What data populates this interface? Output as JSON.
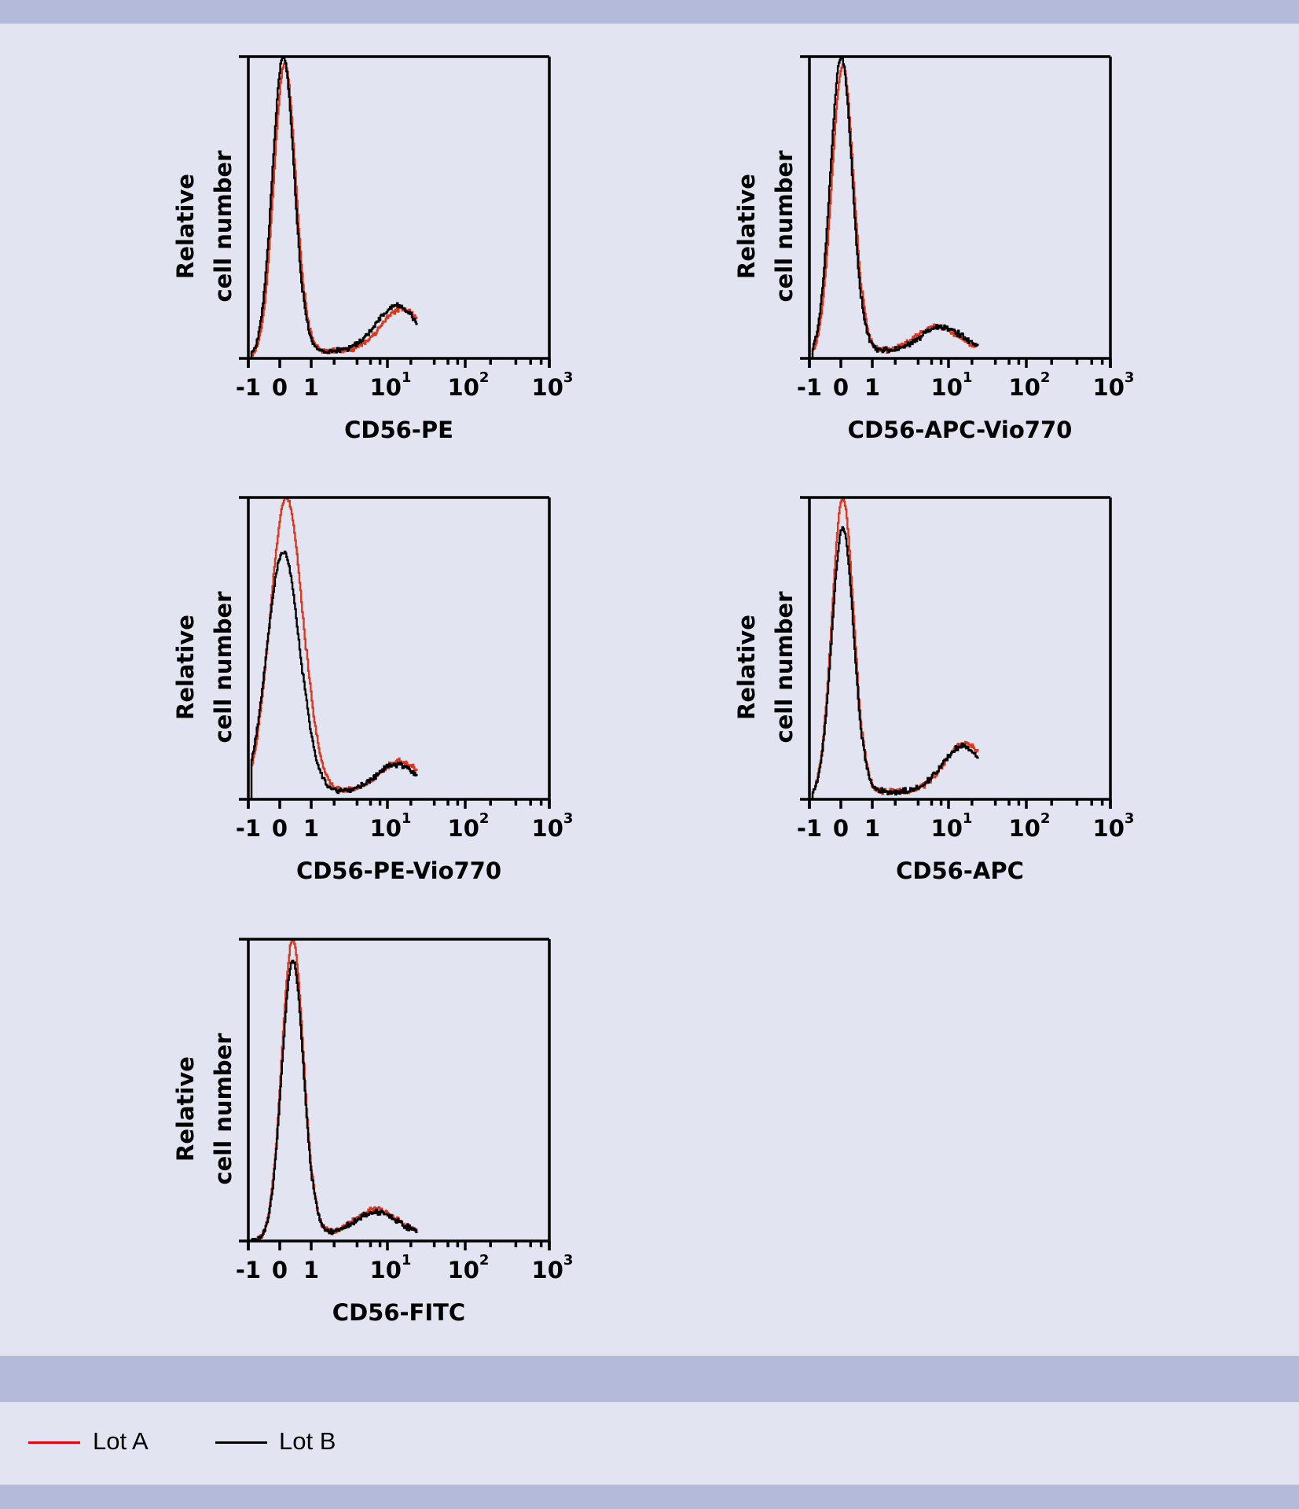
{
  "legend": {
    "items": [
      {
        "label": "Lot A",
        "color": "#e30613"
      },
      {
        "label": "Lot B",
        "color": "#000000"
      }
    ]
  },
  "colors": {
    "background": "#e2e5f1",
    "band": "#b3bada",
    "lot_a_line": "#d9381e",
    "lot_b_line": "#000000"
  },
  "chart_data": [
    {
      "type": "line",
      "subtype": "histogram",
      "title": "",
      "xlabel": "CD56-PE",
      "ylabel": "Relative cell number",
      "x_ticks": [
        "-1",
        "0",
        "1",
        "10^1",
        "10^2",
        "10^3"
      ],
      "x_scale": "biexponential",
      "xlim": [
        -1,
        1000
      ],
      "series": [
        {
          "name": "Lot A",
          "peak1_x": 0.15,
          "peak1_y": 0.98,
          "peak2_x": 15,
          "peak2_y": 0.14
        },
        {
          "name": "Lot B",
          "peak1_x": 0.1,
          "peak1_y": 1.0,
          "peak2_x": 13,
          "peak2_y": 0.15
        }
      ]
    },
    {
      "type": "line",
      "subtype": "histogram",
      "title": "",
      "xlabel": "CD56-APC-Vio770",
      "ylabel": "Relative cell number",
      "x_ticks": [
        "-1",
        "0",
        "1",
        "10^1",
        "10^2",
        "10^3"
      ],
      "x_scale": "biexponential",
      "xlim": [
        -1,
        1000
      ],
      "series": [
        {
          "name": "Lot A",
          "peak1_x": 0.05,
          "peak1_y": 0.97,
          "peak2_x": 7,
          "peak2_y": 0.08
        },
        {
          "name": "Lot B",
          "peak1_x": 0.0,
          "peak1_y": 1.0,
          "peak2_x": 8,
          "peak2_y": 0.08
        }
      ]
    },
    {
      "type": "line",
      "subtype": "histogram",
      "title": "",
      "xlabel": "CD56-PE-Vio770",
      "ylabel": "Relative cell number",
      "x_ticks": [
        "-1",
        "0",
        "1",
        "10^1",
        "10^2",
        "10^3"
      ],
      "x_scale": "biexponential",
      "xlim": [
        -1,
        1000
      ],
      "series": [
        {
          "name": "Lot A",
          "peak1_x": 0.2,
          "peak1_y": 1.0,
          "peak2_x": 14,
          "peak2_y": 0.1
        },
        {
          "name": "Lot B",
          "peak1_x": 0.1,
          "peak1_y": 0.82,
          "peak2_x": 13,
          "peak2_y": 0.09
        }
      ]
    },
    {
      "type": "line",
      "subtype": "histogram",
      "title": "",
      "xlabel": "CD56-APC",
      "ylabel": "Relative cell number",
      "x_ticks": [
        "-1",
        "0",
        "1",
        "10^1",
        "10^2",
        "10^3"
      ],
      "x_scale": "biexponential",
      "xlim": [
        -1,
        1000
      ],
      "series": [
        {
          "name": "Lot A",
          "peak1_x": 0.05,
          "peak1_y": 1.0,
          "peak2_x": 16,
          "peak2_y": 0.16
        },
        {
          "name": "Lot B",
          "peak1_x": 0.05,
          "peak1_y": 0.9,
          "peak2_x": 15,
          "peak2_y": 0.15
        }
      ]
    },
    {
      "type": "line",
      "subtype": "histogram",
      "title": "",
      "xlabel": "CD56-FITC",
      "ylabel": "Relative cell number",
      "x_ticks": [
        "-1",
        "0",
        "1",
        "10^1",
        "10^2",
        "10^3"
      ],
      "x_scale": "biexponential",
      "xlim": [
        -1,
        1000
      ],
      "series": [
        {
          "name": "Lot A",
          "peak1_x": 0.4,
          "peak1_y": 1.0,
          "peak2_x": 7,
          "peak2_y": 0.08
        },
        {
          "name": "Lot B",
          "peak1_x": 0.4,
          "peak1_y": 0.93,
          "peak2_x": 7,
          "peak2_y": 0.07
        }
      ]
    }
  ],
  "plots": [
    {
      "xlabel": "CD56-PE",
      "ylabel_line1": "Relative",
      "ylabel_line2": "cell number"
    },
    {
      "xlabel": "CD56-APC-Vio770",
      "ylabel_line1": "Relative",
      "ylabel_line2": "cell number"
    },
    {
      "xlabel": "CD56-PE-Vio770",
      "ylabel_line1": "Relative",
      "ylabel_line2": "cell number"
    },
    {
      "xlabel": "CD56-APC",
      "ylabel_line1": "Relative",
      "ylabel_line2": "cell number"
    },
    {
      "xlabel": "CD56-FITC",
      "ylabel_line1": "Relative",
      "ylabel_line2": "cell number"
    }
  ],
  "axis": {
    "tick_labels": [
      {
        "base": "-1",
        "exp": ""
      },
      {
        "base": "0",
        "exp": ""
      },
      {
        "base": "1",
        "exp": ""
      },
      {
        "base": "10",
        "exp": "1"
      },
      {
        "base": "10",
        "exp": "2"
      },
      {
        "base": "10",
        "exp": "3"
      }
    ]
  }
}
